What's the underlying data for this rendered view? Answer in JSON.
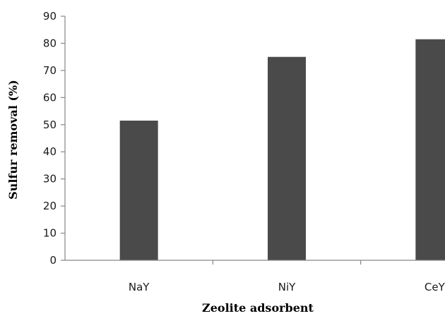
{
  "chart_data": {
    "type": "bar",
    "categories": [
      "NaY",
      "NiY",
      "CeY"
    ],
    "values": [
      51.5,
      75,
      81.5
    ],
    "xlabel": "Zeolite adsorbent",
    "ylabel": "Sulfur removal (%)",
    "ylim": [
      0,
      90
    ],
    "yticks": [
      0,
      10,
      20,
      30,
      40,
      50,
      60,
      70,
      80,
      90
    ],
    "grid": false,
    "legend": "none",
    "colors": {
      "bar": "#4a4a4a",
      "axis": "#868686"
    }
  }
}
